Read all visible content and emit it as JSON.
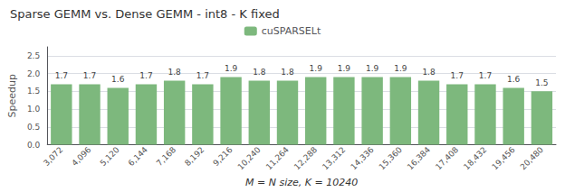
{
  "chart_data": {
    "type": "bar",
    "title": "Sparse GEMM vs. Dense GEMM - int8 - K fixed",
    "xlabel": "M = N size, K = 10240",
    "ylabel": "Speedup",
    "categories": [
      "3,072",
      "4,096",
      "5,120",
      "6,144",
      "7,168",
      "8,192",
      "9,216",
      "10,240",
      "11,264",
      "12,288",
      "13,312",
      "14,336",
      "15,360",
      "16,384",
      "17,408",
      "18,432",
      "19,456",
      "20,480"
    ],
    "series": [
      {
        "name": "cuSPARSELt",
        "color": "#7db87d",
        "values": [
          1.7,
          1.7,
          1.6,
          1.7,
          1.8,
          1.7,
          1.9,
          1.8,
          1.8,
          1.9,
          1.9,
          1.9,
          1.9,
          1.8,
          1.7,
          1.7,
          1.6,
          1.5
        ]
      }
    ],
    "ylim": [
      0.0,
      2.75
    ],
    "yticks": [
      {
        "value": 0,
        "label": "0.0"
      },
      0.5,
      {
        "value": 1,
        "label": "1.0"
      },
      1.5,
      {
        "value": 2,
        "label": "2.0"
      },
      2.5
    ],
    "grid": true,
    "legend": "top",
    "data_labels": true
  }
}
